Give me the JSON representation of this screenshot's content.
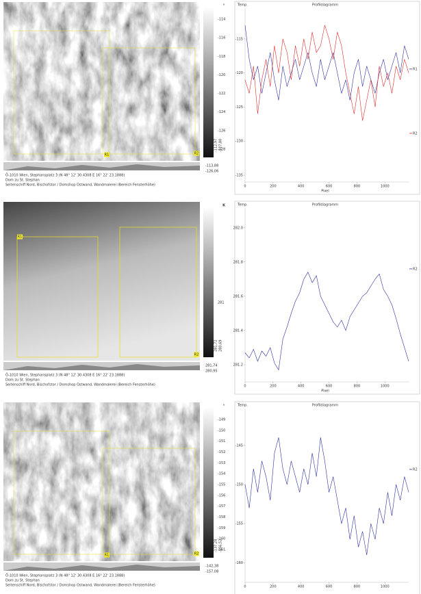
{
  "panels": [
    {
      "caption": [
        "Ö-1010 Wien, Stephansplatz 3 (N 48° 12' 30.4308 E 16° 22' 23.1888)",
        "Dom zu St. Stephan",
        "Seitenschiff Nord, Bischofstor / Domshop Ostwand, Wandmalerei (Bereich Fensterhöhe)"
      ],
      "colorbar": {
        "unit": "°",
        "ticks": [
          -114,
          -116,
          -118,
          -120,
          -122,
          -124,
          -126,
          -128
        ]
      },
      "readouts": [
        "-113,88",
        "-126,06",
        "-112,97",
        "-127,80"
      ],
      "markers": [
        "R1",
        "R2"
      ]
    },
    {
      "caption": [
        "Ö-1010 Wien, Stephansplatz 3 (N 48° 12' 30.4308 E 16° 22' 23.1888)",
        "Dom zu St. Stephan",
        "Seitenschiff Nord, Bischofstor / Domshop Ostwand, Wandmalerei (Bereich Fensterhöhe)"
      ],
      "colorbar": {
        "unit": "K",
        "ticks": [
          281
        ]
      },
      "readouts": [
        "281,74",
        "280,95",
        "281,72",
        "280,69"
      ],
      "markers": [
        "R1",
        "R2"
      ]
    },
    {
      "caption": [
        "Ö-1010 Wien, Stephansplatz 3 (N 48° 12' 30.4308 E 16° 22' 23.1888)",
        "Dom zu St. Stephan",
        "Seitenschiff Nord, Bischofstor / Domshop Ostwand, Wandmalerei (Bereich Fensterhöhe)"
      ],
      "colorbar": {
        "unit": "°",
        "ticks": [
          -149,
          -150,
          -151,
          -152,
          -153,
          -154,
          -155,
          -156,
          -157,
          -158,
          -159,
          -160,
          -161
        ]
      },
      "readouts": [
        "-142,38",
        "-157,08",
        "-137,28",
        "-156,52"
      ],
      "markers": [
        "R1",
        "R2"
      ]
    }
  ],
  "chart_data": [
    {
      "type": "line",
      "title": "Profildiagramm",
      "y_label": "Temp.",
      "x_label": "Pixel",
      "x": [
        0,
        30,
        60,
        90,
        120,
        150,
        180,
        210,
        240,
        270,
        300,
        330,
        360,
        390,
        420,
        450,
        480,
        510,
        540,
        570,
        600,
        630,
        660,
        690,
        720,
        750,
        780,
        810,
        840,
        870,
        900,
        930,
        960,
        990,
        1020,
        1050,
        1080,
        1110,
        1140,
        1170
      ],
      "xlim": [
        0,
        1170
      ],
      "xticks": [
        0,
        200,
        400,
        600,
        800,
        1000
      ],
      "ylim": [
        -136,
        -110.5
      ],
      "yticks": [
        -115,
        -120,
        -125,
        -130,
        -135
      ],
      "series": [
        {
          "name": "R1",
          "color": "#2b2f9e",
          "values": [
            -113,
            -118,
            -121,
            -119,
            -123,
            -120,
            -117,
            -121,
            -124,
            -119,
            -122,
            -120,
            -118,
            -121,
            -119,
            -117,
            -120,
            -122,
            -118,
            -121,
            -119,
            -117,
            -120,
            -123,
            -121,
            -124,
            -120,
            -118,
            -122,
            -119,
            -121,
            -123,
            -120,
            -118,
            -121,
            -119,
            -117,
            -120,
            -116,
            -118
          ]
        },
        {
          "name": "R2",
          "color": "#e02a2a",
          "values": [
            -121,
            -123,
            -119,
            -126,
            -121,
            -118,
            -122,
            -116,
            -120,
            -115,
            -117,
            -121,
            -116,
            -119,
            -115,
            -118,
            -114,
            -117,
            -116,
            -113,
            -115,
            -118,
            -114,
            -116,
            -120,
            -123,
            -126,
            -122,
            -127,
            -124,
            -121,
            -125,
            -119,
            -122,
            -120,
            -123,
            -119,
            -121,
            -118,
            -120
          ]
        }
      ]
    },
    {
      "type": "line",
      "title": "Profildiagramm",
      "y_label": "Temp.",
      "x_label": "Pixel",
      "x": [
        0,
        30,
        60,
        90,
        120,
        150,
        180,
        210,
        240,
        270,
        300,
        330,
        360,
        390,
        420,
        450,
        480,
        510,
        540,
        570,
        600,
        630,
        660,
        690,
        720,
        750,
        780,
        810,
        840,
        870,
        900,
        930,
        960,
        990,
        1020,
        1050,
        1080,
        1110,
        1140,
        1170
      ],
      "xlim": [
        0,
        1170
      ],
      "xticks": [
        0,
        200,
        400,
        600,
        800,
        1000
      ],
      "ylim": [
        281.1,
        282.115
      ],
      "yticks": [
        {
          "value": 282,
          "label": "282.0"
        },
        281.8,
        281.6,
        281.4,
        281.2
      ],
      "series": [
        {
          "name": "R2",
          "color": "#2b2f9e",
          "values": [
            281.27,
            281.24,
            281.29,
            281.22,
            281.28,
            281.25,
            281.3,
            281.21,
            281.17,
            281.35,
            281.42,
            281.5,
            281.57,
            281.62,
            281.7,
            281.74,
            281.68,
            281.72,
            281.6,
            281.55,
            281.5,
            281.45,
            281.42,
            281.46,
            281.4,
            281.48,
            281.52,
            281.56,
            281.6,
            281.62,
            281.66,
            281.7,
            281.73,
            281.64,
            281.6,
            281.55,
            281.47,
            281.38,
            281.3,
            281.22
          ]
        }
      ]
    },
    {
      "type": "line",
      "title": "Profildiagramm",
      "y_label": "Temp.",
      "x": [
        0,
        30,
        60,
        90,
        120,
        150,
        180,
        210,
        240,
        270,
        300,
        330,
        360,
        390,
        420,
        450,
        480,
        510,
        540,
        570,
        600,
        630,
        660,
        690,
        720,
        750,
        780,
        810,
        840,
        870,
        900,
        930,
        960,
        990,
        1020,
        1050,
        1080,
        1110,
        1140,
        1170
      ],
      "xlim": [
        0,
        1170
      ],
      "xticks": [
        0,
        200,
        400,
        600,
        800,
        1000
      ],
      "ylim": [
        -162.5,
        -140.3
      ],
      "yticks": [
        -145,
        -150,
        -155,
        -160
      ],
      "series": [
        {
          "name": "R2",
          "color": "#2b2f9e",
          "values": [
            -150,
            -153,
            -148,
            -151,
            -147,
            -149,
            -152,
            -146,
            -144,
            -148,
            -150,
            -147,
            -149,
            -151,
            -148,
            -150,
            -146,
            -149,
            -144,
            -147,
            -151,
            -149,
            -152,
            -155,
            -153,
            -157,
            -154,
            -158,
            -156,
            -159,
            -155,
            -157,
            -153,
            -155,
            -151,
            -154,
            -150,
            -152,
            -149,
            -151
          ]
        }
      ]
    }
  ]
}
